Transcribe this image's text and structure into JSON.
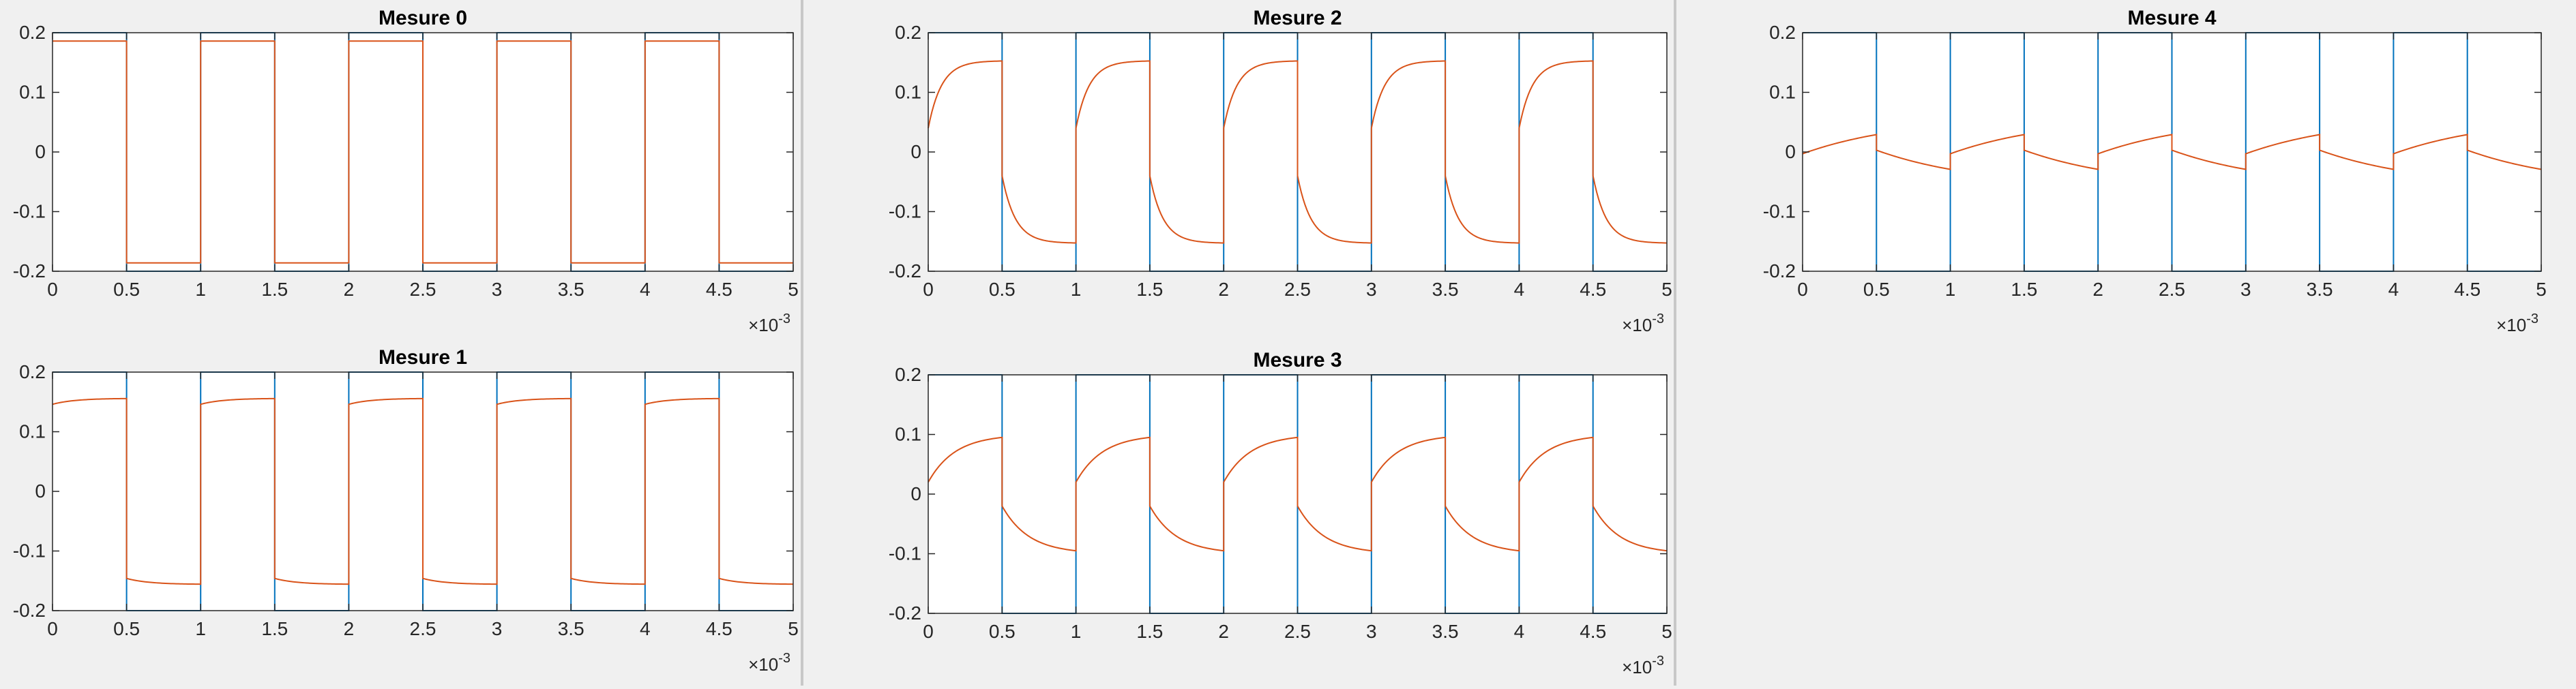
{
  "figure": {
    "background": "#f0f0f0",
    "axes_background": "#ffffff",
    "square_color": "#0072bd",
    "response_color": "#d95319"
  },
  "chart_data": [
    {
      "type": "line",
      "title": "Mesure 0",
      "xlim": [
        0,
        5
      ],
      "ylim": [
        -0.2,
        0.2
      ],
      "xticks": [
        "0",
        "0.5",
        "1",
        "1.5",
        "2",
        "2.5",
        "3",
        "3.5",
        "4",
        "4.5",
        "5"
      ],
      "yticks": [
        "-0.2",
        "-0.1",
        "0",
        "0.1",
        "0.2"
      ],
      "x_exponent_base": "×10",
      "x_exponent": "-3",
      "xlabel": "",
      "ylabel": "",
      "grid": false,
      "series": [
        {
          "color": "#0072bd",
          "kind": "square",
          "period": 1,
          "high": 0.2,
          "low": -0.2
        },
        {
          "color": "#d95319",
          "kind": "exp_response",
          "period": 1,
          "y0": 0.186,
          "y_inf": 0.186,
          "tau": 0.5
        }
      ]
    },
    {
      "type": "line",
      "title": "Mesure 1",
      "xlim": [
        0,
        5
      ],
      "ylim": [
        -0.2,
        0.2
      ],
      "xticks": [
        "0",
        "0.5",
        "1",
        "1.5",
        "2",
        "2.5",
        "3",
        "3.5",
        "4",
        "4.5",
        "5"
      ],
      "yticks": [
        "-0.2",
        "-0.1",
        "0",
        "0.1",
        "0.2"
      ],
      "x_exponent_base": "×10",
      "x_exponent": "-3",
      "xlabel": "",
      "ylabel": "",
      "grid": false,
      "series": [
        {
          "color": "#0072bd",
          "kind": "square",
          "period": 1,
          "high": 0.2,
          "low": -0.2
        },
        {
          "color": "#d95319",
          "kind": "exp_response",
          "period": 1,
          "y0": 0.146,
          "y_inf": 0.156,
          "tau": 0.15
        }
      ]
    },
    {
      "type": "line",
      "title": "Mesure 2",
      "xlim": [
        0,
        5
      ],
      "ylim": [
        -0.2,
        0.2
      ],
      "xticks": [
        "0",
        "0.5",
        "1",
        "1.5",
        "2",
        "2.5",
        "3",
        "3.5",
        "4",
        "4.5",
        "5"
      ],
      "yticks": [
        "-0.2",
        "-0.1",
        "0",
        "0.1",
        "0.2"
      ],
      "x_exponent_base": "×10",
      "x_exponent": "-3",
      "xlabel": "",
      "ylabel": "",
      "grid": false,
      "series": [
        {
          "color": "#0072bd",
          "kind": "square",
          "period": 1,
          "high": 0.2,
          "low": -0.2
        },
        {
          "color": "#d95319",
          "kind": "exp_response",
          "period": 1,
          "y0": 0.04,
          "y_inf": 0.153,
          "tau": 0.09
        }
      ]
    },
    {
      "type": "line",
      "title": "Mesure 3",
      "xlim": [
        0,
        5
      ],
      "ylim": [
        -0.2,
        0.2
      ],
      "xticks": [
        "0",
        "0.5",
        "1",
        "1.5",
        "2",
        "2.5",
        "3",
        "3.5",
        "4",
        "4.5",
        "5"
      ],
      "yticks": [
        "-0.2",
        "-0.1",
        "0",
        "0.1",
        "0.2"
      ],
      "x_exponent_base": "×10",
      "x_exponent": "-3",
      "xlabel": "",
      "ylabel": "",
      "grid": false,
      "series": [
        {
          "color": "#0072bd",
          "kind": "square",
          "period": 1,
          "high": 0.2,
          "low": -0.2
        },
        {
          "color": "#d95319",
          "kind": "exp_response",
          "period": 1,
          "y0": 0.02,
          "y_inf": 0.1,
          "tau": 0.18
        }
      ]
    },
    {
      "type": "line",
      "title": "Mesure 4",
      "xlim": [
        0,
        5
      ],
      "ylim": [
        -0.2,
        0.2
      ],
      "xticks": [
        "0",
        "0.5",
        "1",
        "1.5",
        "2",
        "2.5",
        "3",
        "3.5",
        "4",
        "4.5",
        "5"
      ],
      "yticks": [
        "-0.2",
        "-0.1",
        "0",
        "0.1",
        "0.2"
      ],
      "x_exponent_base": "×10",
      "x_exponent": "-3",
      "xlabel": "",
      "ylabel": "",
      "grid": false,
      "series": [
        {
          "color": "#0072bd",
          "kind": "square",
          "period": 1,
          "high": 0.2,
          "low": -0.2
        },
        {
          "color": "#d95319",
          "kind": "exp_response",
          "period": 1,
          "y0": -0.003,
          "y_inf": 0.06,
          "tau": 0.7
        }
      ]
    }
  ]
}
